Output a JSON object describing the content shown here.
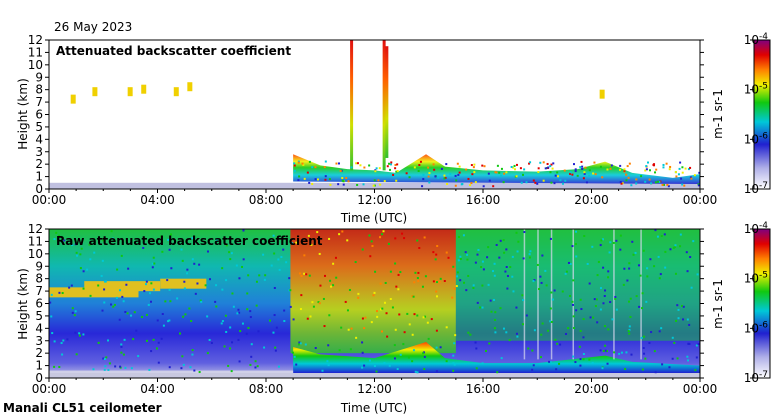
{
  "header": {
    "date": "26 May 2023"
  },
  "footer": {
    "instrument": "Manali CL51 ceilometer"
  },
  "colors": {
    "background_low": "#d8d8ea",
    "blue": "#2020d0",
    "cyan": "#00c8d8",
    "green": "#10c810",
    "yellow": "#f0f000",
    "orange": "#ff8000",
    "red": "#e00000",
    "purple": "#800080"
  },
  "chart_data": [
    {
      "type": "heatmap",
      "title": "Attenuated backscatter coefficient",
      "xlabel": "Time (UTC)",
      "ylabel": "Height (km)",
      "x_ticks": [
        "00:00",
        "04:00",
        "08:00",
        "12:00",
        "16:00",
        "20:00",
        "00:00"
      ],
      "y_ticks": [
        "0",
        "1",
        "2",
        "3",
        "4",
        "5",
        "6",
        "7",
        "8",
        "9",
        "10",
        "11",
        "12"
      ],
      "xlim_hours": [
        0,
        24
      ],
      "ylim_km": [
        0,
        12
      ],
      "colorbar": {
        "label": "m-1 sr-1",
        "tick_labels": [
          "10-7",
          "10-6",
          "10-5",
          "10-4"
        ],
        "range_log10": [
          -7,
          -4
        ]
      }
    },
    {
      "type": "heatmap",
      "title": "Raw attenuated backscatter coefficient",
      "xlabel": "Time (UTC)",
      "ylabel": "Height (km)",
      "x_ticks": [
        "00:00",
        "04:00",
        "08:00",
        "12:00",
        "16:00",
        "20:00",
        "00:00"
      ],
      "y_ticks": [
        "0",
        "1",
        "2",
        "3",
        "4",
        "5",
        "6",
        "7",
        "8",
        "9",
        "10",
        "11",
        "12"
      ],
      "xlim_hours": [
        0,
        24
      ],
      "ylim_km": [
        0,
        12
      ],
      "colorbar": {
        "label": "m-1 sr-1",
        "tick_labels": [
          "10-7",
          "10-6",
          "10-5",
          "10-4"
        ],
        "range_log10": [
          -7,
          -4
        ]
      }
    }
  ]
}
